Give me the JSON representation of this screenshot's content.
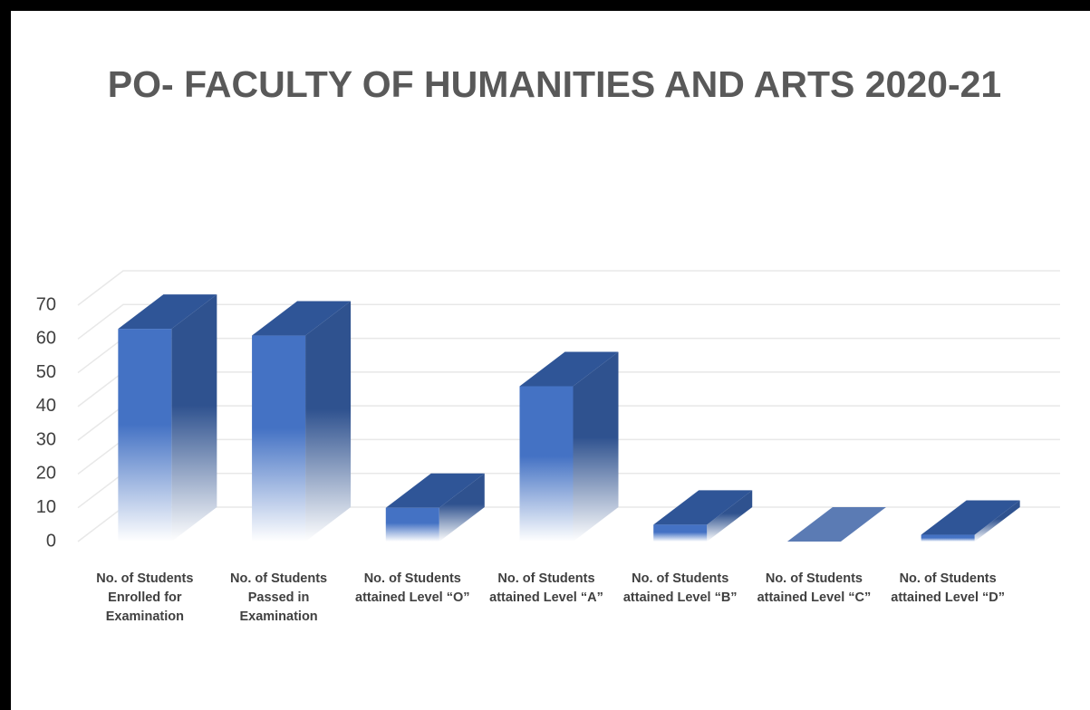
{
  "chart_data": {
    "type": "bar3d",
    "title": "PO- FACULTY OF HUMANITIES AND ARTS 2020-21",
    "categories": [
      "No. of Students Enrolled for Examination",
      "No. of Students Passed in Examination",
      "No. of Students attained Level “O”",
      "No. of Students attained Level “A”",
      "No. of Students attained Level “B”",
      "No. of Students attained Level “C”",
      "No. of Students attained Level “D”"
    ],
    "values": [
      63,
      61,
      10,
      46,
      5,
      0,
      2
    ],
    "color": "#4472c4",
    "ylim": [
      0,
      70
    ],
    "yticks": [
      0,
      10,
      20,
      30,
      40,
      50,
      60,
      70
    ],
    "grid": true
  }
}
